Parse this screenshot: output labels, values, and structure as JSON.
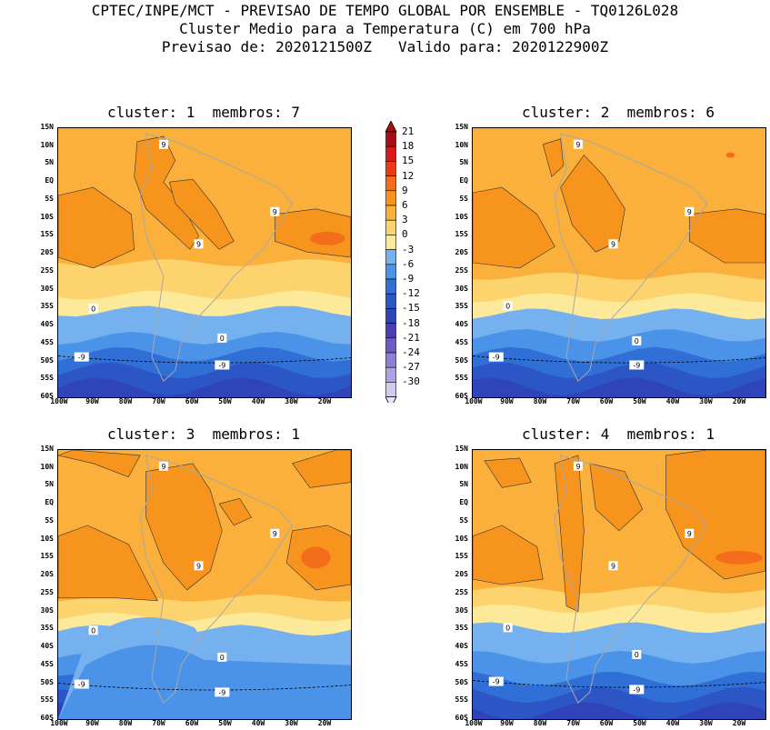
{
  "header": {
    "line1": "CPTEC/INPE/MCT - PREVISAO DE TEMPO GLOBAL POR ENSEMBLE - TQ0126L028",
    "line2": "Cluster Medio para a Temperatura (C) em 700 hPa",
    "line3": "Previsao de: 2020121500Z   Valido para: 2020122900Z"
  },
  "panels": [
    {
      "title": "cluster: 1  membros: 7"
    },
    {
      "title": "cluster: 2  membros: 6"
    },
    {
      "title": "cluster: 3  membros: 1"
    },
    {
      "title": "cluster: 4  membros: 1"
    }
  ],
  "lat_labels": [
    "15N",
    "10N",
    "5N",
    "EQ",
    "5S",
    "10S",
    "15S",
    "20S",
    "25S",
    "30S",
    "35S",
    "40S",
    "45S",
    "50S",
    "55S",
    "60S"
  ],
  "lon_labels": [
    "100W",
    "90W",
    "80W",
    "70W",
    "60W",
    "50W",
    "40W",
    "30W",
    "20W"
  ],
  "colorbar": {
    "labels": [
      "21",
      "18",
      "15",
      "12",
      "9",
      "6",
      "3",
      "0",
      "-3",
      "-6",
      "-9",
      "-12",
      "-15",
      "-18",
      "-21",
      "-24",
      "-27",
      "-30"
    ],
    "colors": [
      "#a50f15",
      "#d7191c",
      "#ec3b14",
      "#f46d1a",
      "#f7941d",
      "#fbb03b",
      "#fdd36e",
      "#fde99a",
      "#74b1ee",
      "#4b93e8",
      "#2f6fd6",
      "#2c56c6",
      "#2f44b8",
      "#4a3fb2",
      "#6a5cc4",
      "#8c7fd4",
      "#aea3e2",
      "#d2cbf0"
    ]
  },
  "contour_labels": {
    "warm": "9",
    "zero": "0",
    "cold": "-9"
  }
}
